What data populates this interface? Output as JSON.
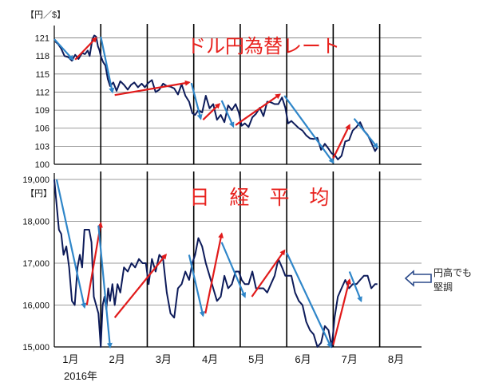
{
  "colors": {
    "line": "#0d1b5a",
    "up_arrow": "#e11b1b",
    "down_arrow": "#2f86c9",
    "title": "#e8211d",
    "grid": "#7a7a7a",
    "divider": "#000000",
    "callout_arrow": "#2b4a8a"
  },
  "month_labels": [
    "1月",
    "2月",
    "3月",
    "4月",
    "5月",
    "6月",
    "7月",
    "8月"
  ],
  "year_label": "2016年",
  "chart_data": [
    {
      "type": "line",
      "title": "ドル円為替レート",
      "unit_label": "【円／$】",
      "ylim": [
        100,
        122
      ],
      "yticks": [
        "100",
        "103",
        "106",
        "109",
        "112",
        "115",
        "118",
        "121"
      ],
      "ytick_values": [
        100,
        103,
        106,
        109,
        112,
        115,
        118,
        121
      ],
      "grid": true,
      "x_month_breaks": [
        2,
        3,
        4,
        5,
        6,
        7,
        8
      ],
      "series": [
        {
          "x": [
            1.02,
            1.08,
            1.15,
            1.22,
            1.3,
            1.38,
            1.45,
            1.52,
            1.6,
            1.66,
            1.72,
            1.76,
            1.82,
            1.86,
            1.9,
            1.94,
            1.97,
            2.0,
            2.05,
            2.1,
            2.15,
            2.2,
            2.27,
            2.34,
            2.42,
            2.5,
            2.58,
            2.65,
            2.72,
            2.8,
            2.88,
            2.95,
            3.02,
            3.1,
            3.18,
            3.26,
            3.34,
            3.42,
            3.5,
            3.58,
            3.66,
            3.74,
            3.82,
            3.9,
            3.97,
            4.03,
            4.1,
            4.18,
            4.26,
            4.34,
            4.42,
            4.5,
            4.58,
            4.66,
            4.74,
            4.82,
            4.9,
            4.97,
            5.03,
            5.1,
            5.18,
            5.26,
            5.34,
            5.42,
            5.5,
            5.58,
            5.66,
            5.74,
            5.82,
            5.9,
            5.97,
            6.03,
            6.1,
            6.18,
            6.26,
            6.34,
            6.42,
            6.5,
            6.58,
            6.66,
            6.74,
            6.82,
            6.9,
            6.97,
            7.03,
            7.1,
            7.18,
            7.26,
            7.34,
            7.42,
            7.5,
            7.58,
            7.66,
            7.74,
            7.82,
            7.9,
            7.95
          ],
          "values": [
            120.4,
            120.0,
            119.2,
            118.0,
            117.8,
            117.2,
            118.2,
            117.5,
            118.5,
            118.3,
            118.9,
            118.0,
            120.8,
            121.4,
            121.2,
            119.6,
            119.0,
            118.0,
            117.0,
            116.4,
            114.2,
            113.0,
            113.6,
            112.2,
            113.8,
            113.2,
            112.4,
            113.2,
            113.6,
            112.8,
            113.4,
            112.8,
            113.5,
            114.0,
            112.0,
            112.4,
            113.4,
            113.0,
            112.9,
            112.6,
            111.6,
            113.3,
            111.4,
            110.4,
            108.5,
            108.2,
            109.0,
            108.6,
            111.4,
            109.3,
            110.0,
            107.4,
            108.2,
            107.0,
            109.8,
            109.0,
            110.0,
            108.6,
            106.4,
            106.8,
            106.2,
            107.8,
            108.4,
            109.4,
            108.0,
            110.4,
            110.3,
            110.0,
            110.0,
            111.1,
            109.4,
            106.8,
            107.2,
            106.6,
            106.0,
            105.6,
            104.8,
            104.3,
            104.2,
            104.4,
            102.4,
            103.4,
            102.6,
            101.8,
            101.6,
            100.8,
            101.4,
            103.8,
            104.0,
            105.6,
            106.2,
            107.0,
            105.6,
            104.9,
            103.6,
            102.2,
            102.8
          ]
        }
      ]
    },
    {
      "type": "line",
      "title": "日　経　平　均",
      "unit_label": "【円】",
      "ylim": [
        15000,
        19000
      ],
      "yticks": [
        "15,000",
        "16,000",
        "17,000",
        "18,000",
        "19,000"
      ],
      "ytick_values": [
        15000,
        16000,
        17000,
        18000,
        19000
      ],
      "grid": true,
      "x_month_breaks": [
        2,
        3,
        4,
        5,
        6,
        7,
        8
      ],
      "annotation": "円高でも\n堅調",
      "series": [
        {
          "x": [
            1.0,
            1.05,
            1.1,
            1.15,
            1.2,
            1.26,
            1.32,
            1.38,
            1.44,
            1.5,
            1.55,
            1.6,
            1.65,
            1.7,
            1.75,
            1.8,
            1.85,
            1.9,
            1.95,
            2.0,
            2.04,
            2.08,
            2.12,
            2.16,
            2.2,
            2.25,
            2.3,
            2.36,
            2.42,
            2.5,
            2.58,
            2.66,
            2.74,
            2.82,
            2.9,
            2.97,
            3.03,
            3.1,
            3.18,
            3.26,
            3.34,
            3.42,
            3.5,
            3.58,
            3.66,
            3.74,
            3.82,
            3.9,
            3.97,
            4.03,
            4.1,
            4.18,
            4.26,
            4.34,
            4.42,
            4.5,
            4.58,
            4.66,
            4.74,
            4.82,
            4.9,
            4.97,
            5.03,
            5.1,
            5.18,
            5.26,
            5.34,
            5.42,
            5.5,
            5.58,
            5.66,
            5.74,
            5.82,
            5.9,
            5.97,
            6.03,
            6.1,
            6.18,
            6.26,
            6.34,
            6.42,
            6.5,
            6.58,
            6.66,
            6.74,
            6.82,
            6.9,
            6.97,
            7.03,
            7.1,
            7.18,
            7.26,
            7.34,
            7.42,
            7.5,
            7.58,
            7.66,
            7.74,
            7.82,
            7.9,
            7.95
          ],
          "values": [
            19000,
            18400,
            17800,
            17700,
            17200,
            17400,
            16900,
            16100,
            16000,
            16900,
            17200,
            16900,
            17800,
            17800,
            17800,
            17500,
            16200,
            16000,
            15800,
            15000,
            16000,
            16200,
            15900,
            16400,
            16100,
            16500,
            16000,
            16500,
            16300,
            16900,
            16800,
            17000,
            16900,
            17100,
            17000,
            17000,
            16500,
            17100,
            16800,
            17200,
            17100,
            16300,
            15800,
            15700,
            16400,
            16500,
            16800,
            16600,
            17000,
            17200,
            17600,
            17400,
            17000,
            16700,
            16400,
            16100,
            16200,
            16700,
            16400,
            16500,
            16800,
            16800,
            16600,
            16500,
            16500,
            16800,
            16400,
            16400,
            16400,
            16300,
            16500,
            16700,
            17100,
            16900,
            16700,
            16700,
            16700,
            16300,
            16100,
            16000,
            15600,
            15400,
            15300,
            15000,
            15100,
            15500,
            15400,
            15000,
            15700,
            16200,
            16400,
            16600,
            16400,
            16500,
            16500,
            16600,
            16700,
            16700,
            16400,
            16500,
            16500
          ]
        }
      ]
    }
  ]
}
